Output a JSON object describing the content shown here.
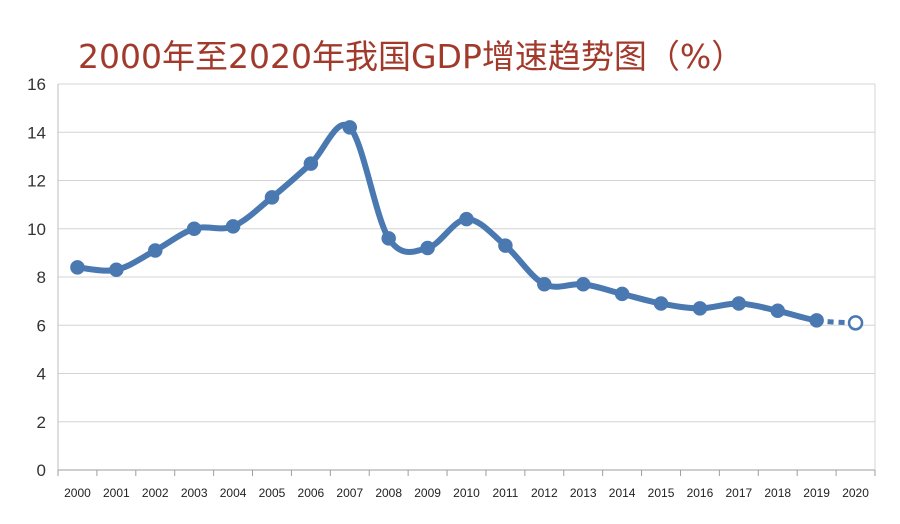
{
  "chart_data": {
    "type": "line",
    "title": "2000年至2020年我国GDP增速趋势图（%）",
    "xlabel": "",
    "ylabel": "",
    "ylim": [
      0,
      16
    ],
    "yticks": [
      "0",
      "2",
      "4",
      "6",
      "8",
      "10",
      "12",
      "14",
      "16"
    ],
    "grid": true,
    "categories": [
      "2000",
      "2001",
      "2002",
      "2003",
      "2004",
      "2005",
      "2006",
      "2007",
      "2008",
      "2009",
      "2010",
      "2011",
      "2012",
      "2013",
      "2014",
      "2015",
      "2016",
      "2017",
      "2018",
      "2019",
      "2020"
    ],
    "series": [
      {
        "values": [
          8.4,
          8.3,
          9.1,
          10.0,
          10.1,
          11.3,
          12.7,
          14.2,
          9.6,
          9.2,
          10.4,
          9.3,
          7.7,
          7.7,
          7.3,
          6.9,
          6.7,
          6.9,
          6.6,
          6.2,
          6.1
        ],
        "projected_from_index": 19,
        "color": "#4a78b0"
      }
    ]
  }
}
